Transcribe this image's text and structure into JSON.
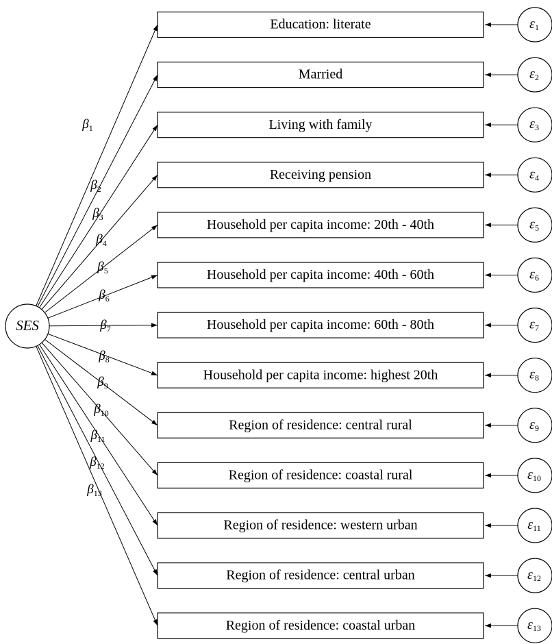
{
  "latent": "SES",
  "indicators": [
    {
      "label": "Education: literate",
      "loading": {
        "symbol": "β",
        "sub": "1"
      },
      "error": {
        "symbol": "ε",
        "sub": "1"
      }
    },
    {
      "label": "Married",
      "loading": {
        "symbol": "β",
        "sub": "2"
      },
      "error": {
        "symbol": "ε",
        "sub": "2"
      }
    },
    {
      "label": "Living with family",
      "loading": {
        "symbol": "β",
        "sub": "3"
      },
      "error": {
        "symbol": "ε",
        "sub": "3"
      }
    },
    {
      "label": "Receiving pension",
      "loading": {
        "symbol": "β",
        "sub": "4"
      },
      "error": {
        "symbol": "ε",
        "sub": "4"
      }
    },
    {
      "label": "Household per capita income: 20th - 40th",
      "loading": {
        "symbol": "β",
        "sub": "5"
      },
      "error": {
        "symbol": "ε",
        "sub": "5"
      }
    },
    {
      "label": "Household per capita income: 40th - 60th",
      "loading": {
        "symbol": "β",
        "sub": "6"
      },
      "error": {
        "symbol": "ε",
        "sub": "6"
      }
    },
    {
      "label": "Household per capita income: 60th - 80th",
      "loading": {
        "symbol": "β",
        "sub": "7"
      },
      "error": {
        "symbol": "ε",
        "sub": "7"
      }
    },
    {
      "label": "Household per capita income: highest 20th",
      "loading": {
        "symbol": "β",
        "sub": "8"
      },
      "error": {
        "symbol": "ε",
        "sub": "8"
      }
    },
    {
      "label": "Region of residence: central rural",
      "loading": {
        "symbol": "β",
        "sub": "9"
      },
      "error": {
        "symbol": "ε",
        "sub": "9"
      }
    },
    {
      "label": "Region of residence: coastal rural",
      "loading": {
        "symbol": "β",
        "sub": "10"
      },
      "error": {
        "symbol": "ε",
        "sub": "10"
      }
    },
    {
      "label": "Region of residence: western urban",
      "loading": {
        "symbol": "β",
        "sub": "11"
      },
      "error": {
        "symbol": "ε",
        "sub": "11"
      }
    },
    {
      "label": "Region of residence: central urban",
      "loading": {
        "symbol": "β",
        "sub": "12"
      },
      "error": {
        "symbol": "ε",
        "sub": "12"
      }
    },
    {
      "label": "Region of residence: coastal urban",
      "loading": {
        "symbol": "β",
        "sub": "13"
      },
      "error": {
        "symbol": "ε",
        "sub": "13"
      }
    }
  ]
}
